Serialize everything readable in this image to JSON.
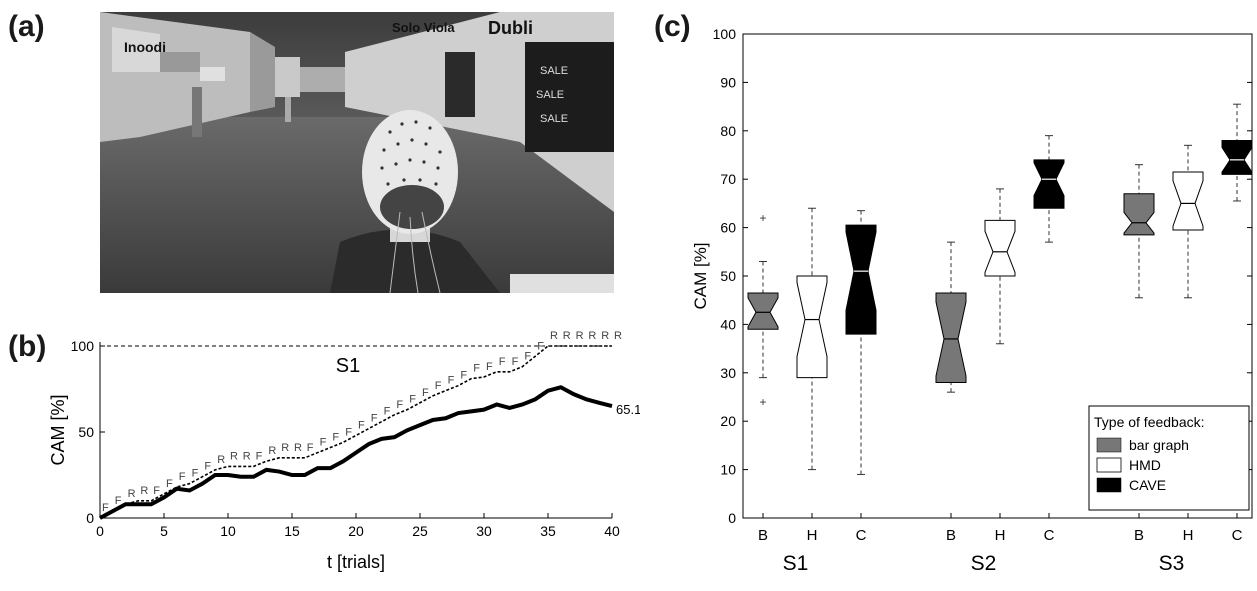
{
  "panels": {
    "a": "(a)",
    "b": "(b)",
    "c": "(c)"
  },
  "photo": {
    "signs": [
      "Inoodi",
      "Solo Viola",
      "Dubli"
    ],
    "sale_text": "SALE"
  },
  "chart_data": [
    {
      "type": "line",
      "panel": "b",
      "title": "S1",
      "xlabel": "t [trials]",
      "ylabel": "CAM [%]",
      "xlim": [
        0,
        40
      ],
      "ylim": [
        0,
        100
      ],
      "xticks": [
        "0",
        "5",
        "10",
        "15",
        "20",
        "25",
        "30",
        "35",
        "40"
      ],
      "yticks": [
        "0",
        "50",
        "100"
      ],
      "grid": false,
      "end_label": "65.1 %",
      "series": [
        {
          "style": "dashed-reference",
          "x": [
            0,
            40
          ],
          "y": [
            100,
            100
          ]
        },
        {
          "style": "dotted",
          "x": [
            0,
            1,
            2,
            3,
            4,
            5,
            6,
            7,
            8,
            9,
            10,
            11,
            12,
            13,
            14,
            15,
            16,
            17,
            18,
            19,
            20,
            21,
            22,
            23,
            24,
            25,
            26,
            27,
            28,
            29,
            30,
            31,
            32,
            33,
            34,
            35,
            36,
            37,
            38,
            39,
            40
          ],
          "y": [
            0,
            4,
            8,
            10,
            10,
            14,
            18,
            20,
            24,
            28,
            30,
            30,
            30,
            33,
            35,
            35,
            35,
            38,
            41,
            44,
            48,
            52,
            56,
            60,
            63,
            67,
            71,
            74,
            77,
            81,
            82,
            85,
            85,
            88,
            94,
            100,
            100,
            100,
            100,
            100,
            100
          ]
        },
        {
          "style": "solid-thick",
          "x": [
            0,
            1,
            2,
            3,
            4,
            5,
            6,
            7,
            8,
            9,
            10,
            11,
            12,
            13,
            14,
            15,
            16,
            17,
            18,
            19,
            20,
            21,
            22,
            23,
            24,
            25,
            26,
            27,
            28,
            29,
            30,
            31,
            32,
            33,
            34,
            35,
            36,
            37,
            38,
            39,
            40
          ],
          "y": [
            0,
            4,
            8,
            8,
            8,
            12,
            17,
            16,
            20,
            25,
            25,
            24,
            24,
            28,
            27,
            25,
            25,
            29,
            29,
            33,
            38,
            43,
            46,
            47,
            51,
            54,
            57,
            58,
            61,
            62,
            63,
            66,
            64,
            66,
            69,
            74,
            76,
            72,
            69,
            67,
            65.1
          ]
        }
      ],
      "trial_labels": [
        "F",
        "F",
        "R",
        "R",
        "F",
        "F",
        "F",
        "F",
        "F",
        "R",
        "R",
        "R",
        "F",
        "R",
        "R",
        "R",
        "F",
        "F",
        "F",
        "F",
        "F",
        "F",
        "F",
        "F",
        "F",
        "F",
        "F",
        "F",
        "F",
        "F",
        "F",
        "F",
        "F",
        "F",
        "F",
        "R",
        "R",
        "R",
        "R",
        "R",
        "R"
      ]
    },
    {
      "type": "box",
      "panel": "c",
      "ylabel": "CAM [%]",
      "ylim": [
        0,
        100
      ],
      "yticks": [
        "0",
        "10",
        "20",
        "30",
        "40",
        "50",
        "60",
        "70",
        "80",
        "90",
        "100"
      ],
      "legend": {
        "title": "Type of feedback:",
        "position": "bottom-right",
        "entries": [
          {
            "label": "bar graph",
            "color": "#777777"
          },
          {
            "label": "HMD",
            "color": "#ffffff"
          },
          {
            "label": "CAVE",
            "color": "#000000"
          }
        ]
      },
      "groups": [
        {
          "name": "S1",
          "boxes": [
            {
              "tick": "B",
              "type": "bar graph",
              "whisker_low": 29,
              "q1": 39,
              "median": 42.5,
              "q3": 46.5,
              "whisker_high": 53,
              "outliers": [
                24,
                62
              ]
            },
            {
              "tick": "H",
              "type": "HMD",
              "whisker_low": 10,
              "q1": 29,
              "median": 41,
              "q3": 50,
              "whisker_high": 64,
              "outliers": []
            },
            {
              "tick": "C",
              "type": "CAVE",
              "whisker_low": 9,
              "q1": 38,
              "median": 51,
              "q3": 60.5,
              "whisker_high": 63.5,
              "outliers": []
            }
          ]
        },
        {
          "name": "S2",
          "boxes": [
            {
              "tick": "B",
              "type": "bar graph",
              "whisker_low": 26,
              "q1": 28,
              "median": 37,
              "q3": 46.5,
              "whisker_high": 57,
              "outliers": []
            },
            {
              "tick": "H",
              "type": "HMD",
              "whisker_low": 36,
              "q1": 50,
              "median": 55,
              "q3": 61.5,
              "whisker_high": 68,
              "outliers": []
            },
            {
              "tick": "C",
              "type": "CAVE",
              "whisker_low": 57,
              "q1": 64,
              "median": 70,
              "q3": 74,
              "whisker_high": 79,
              "outliers": []
            }
          ]
        },
        {
          "name": "S3",
          "boxes": [
            {
              "tick": "B",
              "type": "bar graph",
              "whisker_low": 45.5,
              "q1": 58.5,
              "median": 61,
              "q3": 67,
              "whisker_high": 73,
              "outliers": []
            },
            {
              "tick": "H",
              "type": "HMD",
              "whisker_low": 45.5,
              "q1": 59.5,
              "median": 65,
              "q3": 71.5,
              "whisker_high": 77,
              "outliers": []
            },
            {
              "tick": "C",
              "type": "CAVE",
              "whisker_low": 65.5,
              "q1": 71,
              "median": 74,
              "q3": 78,
              "whisker_high": 85.5,
              "outliers": []
            }
          ]
        }
      ]
    }
  ]
}
